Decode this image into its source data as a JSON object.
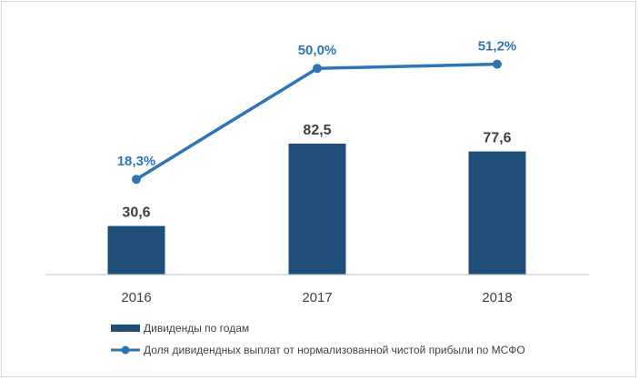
{
  "chart_data": {
    "type": "bar",
    "categories": [
      "2016",
      "2017",
      "2018"
    ],
    "series": [
      {
        "name": "Дивиденды по годам",
        "type": "bar",
        "values": [
          30.6,
          82.5,
          77.6
        ],
        "labels": [
          "30,6",
          "82,5",
          "77,6"
        ],
        "color": "#1f4e79"
      },
      {
        "name": "Доля дивидендных выплат от нормализованной чистой прибыли по МСФО",
        "type": "line",
        "values": [
          18.3,
          50.0,
          51.2
        ],
        "labels": [
          "18,3%",
          "50,0%",
          "51,2%"
        ],
        "color": "#2e75b6"
      }
    ],
    "title": "",
    "xlabel": "",
    "ylabel": "",
    "grid": false,
    "legend": "bottom-left"
  }
}
